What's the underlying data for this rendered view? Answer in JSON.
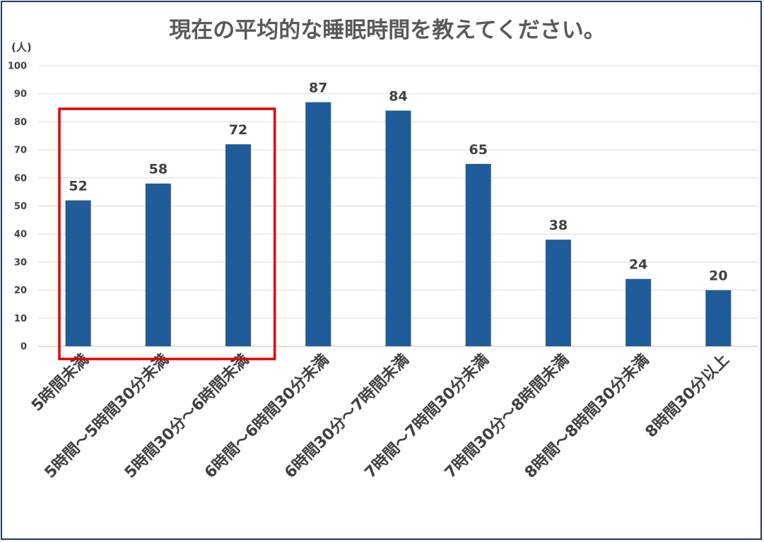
{
  "chart_data": {
    "type": "bar",
    "title": "現在の平均的な睡眠時間を教えてください。",
    "ylabel": "(人)",
    "xlabel": "",
    "ylim": [
      0,
      100
    ],
    "yticks": [
      0,
      10,
      20,
      30,
      40,
      50,
      60,
      70,
      80,
      90,
      100
    ],
    "grid": true,
    "categories": [
      "5時間未満",
      "5時間～5時間30分未満",
      "5時間30分～6時間未満",
      "6時間～6時間30分未満",
      "6時間30分～7時間未満",
      "7時間～7時間30分未満",
      "7時間30分～8時間未満",
      "8時間～8時間30分未満",
      "8時間30分以上"
    ],
    "values": [
      52,
      58,
      72,
      87,
      84,
      65,
      38,
      24,
      20
    ],
    "highlighted_categories": [
      0,
      1,
      2
    ],
    "colors": {
      "bar": "#1f5c99",
      "highlight_box": "#e00000",
      "frame": "#1f3864"
    }
  }
}
